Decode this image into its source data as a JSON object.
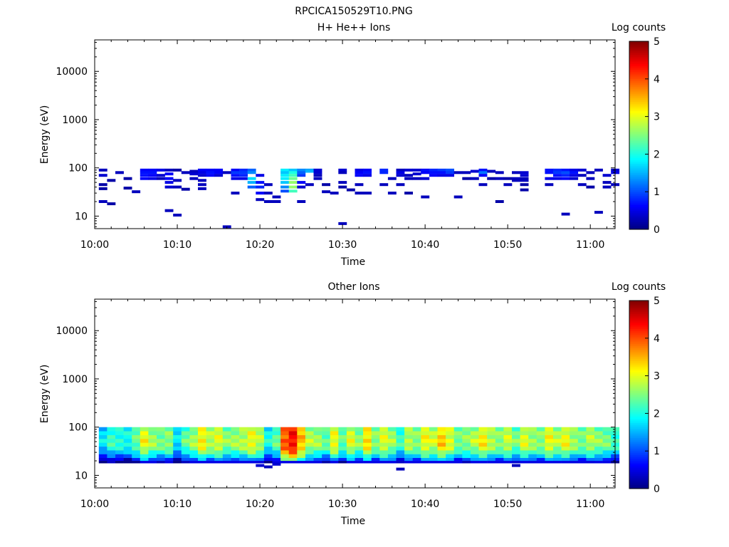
{
  "figure_title": "RPCICA150529T10.PNG",
  "chart_data": [
    {
      "type": "heatmap",
      "title": "H+ He++ Ions",
      "xlabel": "Time",
      "ylabel": "Energy (eV)",
      "y_scale": "log",
      "xlim": [
        "10:00",
        "11:03"
      ],
      "ylim": [
        5.5,
        45000
      ],
      "xticks": [
        "10:00",
        "10:10",
        "10:20",
        "10:30",
        "10:40",
        "10:50",
        "11:00"
      ],
      "yticks": [
        "10",
        "100",
        "1000",
        "10000"
      ],
      "colorbar": {
        "label": "Log counts",
        "range": [
          0,
          5
        ],
        "ticks": [
          "0",
          "1",
          "2",
          "3",
          "4",
          "5"
        ],
        "colormap": "jet"
      },
      "cells": [
        [
          "10:01",
          90,
          0.3
        ],
        [
          "10:01",
          70,
          0.4
        ],
        [
          "10:01",
          45,
          0.2
        ],
        [
          "10:01",
          37,
          0.2
        ],
        [
          "10:01",
          20,
          0.3
        ],
        [
          "10:02",
          55,
          0.2
        ],
        [
          "10:02",
          18,
          0.2
        ],
        [
          "10:03",
          80,
          0.3
        ],
        [
          "10:04",
          60,
          0.2
        ],
        [
          "10:04",
          38,
          0.2
        ],
        [
          "10:05",
          32,
          0.3
        ],
        [
          "10:06",
          90,
          0.6
        ],
        [
          "10:06",
          80,
          0.7
        ],
        [
          "10:06",
          70,
          0.7
        ],
        [
          "10:06",
          60,
          0.6
        ],
        [
          "10:07",
          90,
          0.6
        ],
        [
          "10:07",
          80,
          0.7
        ],
        [
          "10:07",
          70,
          0.6
        ],
        [
          "10:07",
          60,
          0.5
        ],
        [
          "10:08",
          90,
          0.5
        ],
        [
          "10:08",
          70,
          0.4
        ],
        [
          "10:08",
          60,
          0.3
        ],
        [
          "10:09",
          90,
          0.3
        ],
        [
          "10:09",
          75,
          0.6
        ],
        [
          "10:09",
          60,
          0.6
        ],
        [
          "10:09",
          50,
          0.5
        ],
        [
          "10:09",
          40,
          0.4
        ],
        [
          "10:09",
          13,
          0.3
        ],
        [
          "10:10",
          90,
          0.2
        ],
        [
          "10:10",
          55,
          0.3
        ],
        [
          "10:10",
          40,
          0.3
        ],
        [
          "10:10",
          10.5,
          0.3
        ],
        [
          "10:11",
          80,
          0.3
        ],
        [
          "10:11",
          36,
          0.2
        ],
        [
          "10:12",
          85,
          0.3
        ],
        [
          "10:12",
          75,
          0.4
        ],
        [
          "10:12",
          60,
          0.3
        ],
        [
          "10:13",
          90,
          0.6
        ],
        [
          "10:13",
          80,
          0.5
        ],
        [
          "10:13",
          70,
          0.4
        ],
        [
          "10:13",
          55,
          0.3
        ],
        [
          "10:13",
          45,
          0.3
        ],
        [
          "10:13",
          37,
          0.3
        ],
        [
          "10:14",
          90,
          0.6
        ],
        [
          "10:14",
          80,
          0.7
        ],
        [
          "10:14",
          70,
          0.6
        ],
        [
          "10:15",
          90,
          0.6
        ],
        [
          "10:15",
          80,
          0.6
        ],
        [
          "10:15",
          70,
          0.4
        ],
        [
          "10:16",
          80,
          0.3
        ],
        [
          "10:16",
          6,
          0.3
        ],
        [
          "10:17",
          90,
          0.6
        ],
        [
          "10:17",
          80,
          0.9
        ],
        [
          "10:17",
          70,
          0.7
        ],
        [
          "10:17",
          60,
          0.5
        ],
        [
          "10:17",
          30,
          0.3
        ],
        [
          "10:18",
          90,
          0.8
        ],
        [
          "10:18",
          80,
          0.9
        ],
        [
          "10:18",
          70,
          0.8
        ],
        [
          "10:18",
          60,
          0.5
        ],
        [
          "10:19",
          90,
          1.1
        ],
        [
          "10:19",
          80,
          1.3
        ],
        [
          "10:19",
          60,
          1.7
        ],
        [
          "10:19",
          50,
          1.5
        ],
        [
          "10:19",
          40,
          1.1
        ],
        [
          "10:20",
          70,
          0.5
        ],
        [
          "10:20",
          50,
          0.7
        ],
        [
          "10:20",
          40,
          0.8
        ],
        [
          "10:20",
          30,
          0.6
        ],
        [
          "10:20",
          22,
          0.3
        ],
        [
          "10:21",
          45,
          0.3
        ],
        [
          "10:21",
          30,
          0.3
        ],
        [
          "10:21",
          20,
          0.3
        ],
        [
          "10:22",
          25,
          0.3
        ],
        [
          "10:22",
          20,
          0.3
        ],
        [
          "10:23",
          90,
          1.8
        ],
        [
          "10:23",
          80,
          1.6
        ],
        [
          "10:23",
          70,
          1.8
        ],
        [
          "10:23",
          60,
          1.8
        ],
        [
          "10:23",
          50,
          1.6
        ],
        [
          "10:23",
          40,
          1.3
        ],
        [
          "10:23",
          33,
          1.0
        ],
        [
          "10:24",
          90,
          1.6
        ],
        [
          "10:24",
          80,
          2.0
        ],
        [
          "10:24",
          70,
          2.2
        ],
        [
          "10:24",
          60,
          2.4
        ],
        [
          "10:24",
          50,
          2.6
        ],
        [
          "10:24",
          40,
          2.6
        ],
        [
          "10:24",
          33,
          2.2
        ],
        [
          "10:25",
          90,
          1.3
        ],
        [
          "10:25",
          80,
          1.1
        ],
        [
          "10:25",
          70,
          0.9
        ],
        [
          "10:25",
          50,
          0.6
        ],
        [
          "10:25",
          40,
          0.4
        ],
        [
          "10:25",
          20,
          0.3
        ],
        [
          "10:26",
          90,
          1.4
        ],
        [
          "10:26",
          85,
          1.5
        ],
        [
          "10:26",
          45,
          0.3
        ],
        [
          "10:27",
          90,
          0.4
        ],
        [
          "10:27",
          80,
          0.4
        ],
        [
          "10:27",
          70,
          0.3
        ],
        [
          "10:27",
          60,
          0.3
        ],
        [
          "10:28",
          45,
          0.2
        ],
        [
          "10:28",
          32,
          0.3
        ],
        [
          "10:29",
          30,
          0.3
        ],
        [
          "10:30",
          90,
          0.4
        ],
        [
          "10:30",
          80,
          0.3
        ],
        [
          "10:30",
          7,
          0.3
        ],
        [
          "10:30",
          50,
          0.3
        ],
        [
          "10:30",
          40,
          0.2
        ],
        [
          "10:31",
          35,
          0.2
        ],
        [
          "10:32",
          90,
          0.5
        ],
        [
          "10:32",
          80,
          0.6
        ],
        [
          "10:32",
          70,
          0.6
        ],
        [
          "10:32",
          45,
          0.3
        ],
        [
          "10:32",
          30,
          0.3
        ],
        [
          "10:33",
          90,
          0.6
        ],
        [
          "10:33",
          80,
          0.7
        ],
        [
          "10:33",
          70,
          0.5
        ],
        [
          "10:33",
          30,
          0.3
        ],
        [
          "10:35",
          90,
          0.8
        ],
        [
          "10:35",
          80,
          0.8
        ],
        [
          "10:35",
          45,
          0.3
        ],
        [
          "10:36",
          60,
          0.3
        ],
        [
          "10:36",
          30,
          0.3
        ],
        [
          "10:37",
          90,
          0.3
        ],
        [
          "10:37",
          80,
          0.5
        ],
        [
          "10:37",
          70,
          0.4
        ],
        [
          "10:37",
          45,
          0.3
        ],
        [
          "10:38",
          90,
          0.4
        ],
        [
          "10:38",
          70,
          0.3
        ],
        [
          "10:38",
          60,
          0.3
        ],
        [
          "10:38",
          30,
          0.2
        ],
        [
          "10:39",
          90,
          0.4
        ],
        [
          "10:39",
          75,
          0.4
        ],
        [
          "10:39",
          60,
          0.3
        ],
        [
          "10:40",
          90,
          0.6
        ],
        [
          "10:40",
          85,
          0.7
        ],
        [
          "10:40",
          80,
          0.6
        ],
        [
          "10:40",
          60,
          0.4
        ],
        [
          "10:40",
          25,
          0.3
        ],
        [
          "10:41",
          90,
          0.8
        ],
        [
          "10:41",
          80,
          0.7
        ],
        [
          "10:41",
          70,
          0.6
        ],
        [
          "10:42",
          90,
          0.9
        ],
        [
          "10:42",
          80,
          0.7
        ],
        [
          "10:42",
          70,
          0.5
        ],
        [
          "10:43",
          90,
          1.0
        ],
        [
          "10:43",
          80,
          0.9
        ],
        [
          "10:43",
          70,
          0.5
        ],
        [
          "10:44",
          80,
          0.3
        ],
        [
          "10:44",
          25,
          0.3
        ],
        [
          "10:45",
          80,
          0.3
        ],
        [
          "10:45",
          60,
          0.2
        ],
        [
          "10:46",
          85,
          0.4
        ],
        [
          "10:46",
          60,
          0.3
        ],
        [
          "10:47",
          90,
          0.7
        ],
        [
          "10:47",
          80,
          1.2
        ],
        [
          "10:47",
          70,
          0.6
        ],
        [
          "10:47",
          45,
          0.3
        ],
        [
          "10:48",
          85,
          0.3
        ],
        [
          "10:48",
          60,
          0.2
        ],
        [
          "10:49",
          80,
          0.3
        ],
        [
          "10:49",
          60,
          0.3
        ],
        [
          "10:49",
          20,
          0.2
        ],
        [
          "10:50",
          60,
          0.2
        ],
        [
          "10:50",
          45,
          0.3
        ],
        [
          "10:51",
          80,
          0.3
        ],
        [
          "10:51",
          60,
          0.3
        ],
        [
          "10:51",
          55,
          0.3
        ],
        [
          "10:52",
          80,
          0.4
        ],
        [
          "10:52",
          70,
          0.4
        ],
        [
          "10:52",
          60,
          0.3
        ],
        [
          "10:52",
          55,
          0.3
        ],
        [
          "10:52",
          45,
          0.2
        ],
        [
          "10:52",
          35,
          0.2
        ],
        [
          "10:55",
          90,
          0.7
        ],
        [
          "10:55",
          80,
          0.7
        ],
        [
          "10:55",
          60,
          0.5
        ],
        [
          "10:55",
          45,
          0.3
        ],
        [
          "10:56",
          90,
          0.8
        ],
        [
          "10:56",
          80,
          0.9
        ],
        [
          "10:56",
          70,
          0.7
        ],
        [
          "10:56",
          60,
          0.5
        ],
        [
          "10:57",
          90,
          0.7
        ],
        [
          "10:57",
          80,
          1.0
        ],
        [
          "10:57",
          70,
          0.8
        ],
        [
          "10:57",
          60,
          0.6
        ],
        [
          "10:57",
          11,
          0.3
        ],
        [
          "10:58",
          90,
          0.5
        ],
        [
          "10:58",
          80,
          0.7
        ],
        [
          "10:58",
          70,
          0.5
        ],
        [
          "10:58",
          60,
          0.4
        ],
        [
          "10:59",
          90,
          0.4
        ],
        [
          "10:59",
          70,
          0.3
        ],
        [
          "10:59",
          45,
          0.3
        ],
        [
          "11:00",
          80,
          0.3
        ],
        [
          "11:00",
          60,
          0.3
        ],
        [
          "11:00",
          40,
          0.2
        ],
        [
          "11:01",
          90,
          0.3
        ],
        [
          "11:01",
          12,
          0.3
        ],
        [
          "11:02",
          70,
          0.4
        ],
        [
          "11:02",
          50,
          0.3
        ],
        [
          "11:02",
          40,
          0.3
        ],
        [
          "11:03",
          90,
          0.4
        ],
        [
          "11:03",
          80,
          0.5
        ],
        [
          "11:03",
          45,
          0.3
        ]
      ]
    },
    {
      "type": "heatmap",
      "title": "Other Ions",
      "xlabel": "Time",
      "ylabel": "Energy (eV)",
      "y_scale": "log",
      "xlim": [
        "10:00",
        "11:03"
      ],
      "ylim": [
        5.5,
        45000
      ],
      "xticks": [
        "10:00",
        "10:10",
        "10:20",
        "10:30",
        "10:40",
        "10:50",
        "11:00"
      ],
      "yticks": [
        "10",
        "100",
        "1000",
        "10000"
      ],
      "colorbar": {
        "label": "Log counts",
        "range": [
          0,
          5
        ],
        "ticks": [
          "0",
          "1",
          "2",
          "3",
          "4",
          "5"
        ],
        "colormap": "jet"
      },
      "energy_bins": [
        90,
        75,
        62,
        52,
        43,
        36,
        30,
        25,
        21,
        19
      ],
      "time_bins": [
        "10:01",
        "10:02",
        "10:03",
        "10:04",
        "10:05",
        "10:06",
        "10:07",
        "10:08",
        "10:09",
        "10:10",
        "10:11",
        "10:12",
        "10:13",
        "10:14",
        "10:15",
        "10:16",
        "10:17",
        "10:18",
        "10:19",
        "10:20",
        "10:21",
        "10:22",
        "10:23",
        "10:24",
        "10:25",
        "10:26",
        "10:27",
        "10:28",
        "10:29",
        "10:30",
        "10:31",
        "10:32",
        "10:33",
        "10:34",
        "10:35",
        "10:36",
        "10:37",
        "10:38",
        "10:39",
        "10:40",
        "10:41",
        "10:42",
        "10:43",
        "10:44",
        "10:45",
        "10:46",
        "10:47",
        "10:48",
        "10:49",
        "10:50",
        "10:51",
        "10:52",
        "10:53",
        "10:54",
        "10:55",
        "10:56",
        "10:57",
        "10:58",
        "10:59",
        "11:00",
        "11:01",
        "11:02",
        "11:03"
      ],
      "column_level": [
        1.6,
        2.0,
        1.9,
        1.8,
        2.2,
        2.9,
        2.5,
        2.3,
        2.4,
        1.6,
        2.2,
        2.5,
        3.0,
        2.6,
        2.8,
        2.4,
        2.5,
        2.6,
        2.9,
        2.6,
        1.8,
        2.2,
        3.8,
        4.2,
        3.3,
        2.6,
        2.5,
        2.2,
        2.9,
        2.2,
        2.8,
        2.4,
        3.1,
        2.4,
        2.8,
        2.5,
        2.0,
        2.6,
        2.4,
        2.9,
        2.7,
        3.2,
        2.8,
        2.3,
        2.4,
        2.6,
        3.0,
        2.6,
        2.4,
        2.7,
        2.3,
        2.8,
        2.5,
        2.4,
        2.9,
        2.6,
        2.9,
        2.5,
        2.3,
        2.6,
        2.4,
        2.3,
        2.0
      ],
      "extra_cells": [
        [
          "10:20",
          16,
          0.4
        ],
        [
          "10:21",
          15,
          0.3
        ],
        [
          "10:22",
          17,
          0.4
        ],
        [
          "10:37",
          13.5,
          0.3
        ],
        [
          "10:51",
          16,
          0.3
        ]
      ]
    }
  ]
}
